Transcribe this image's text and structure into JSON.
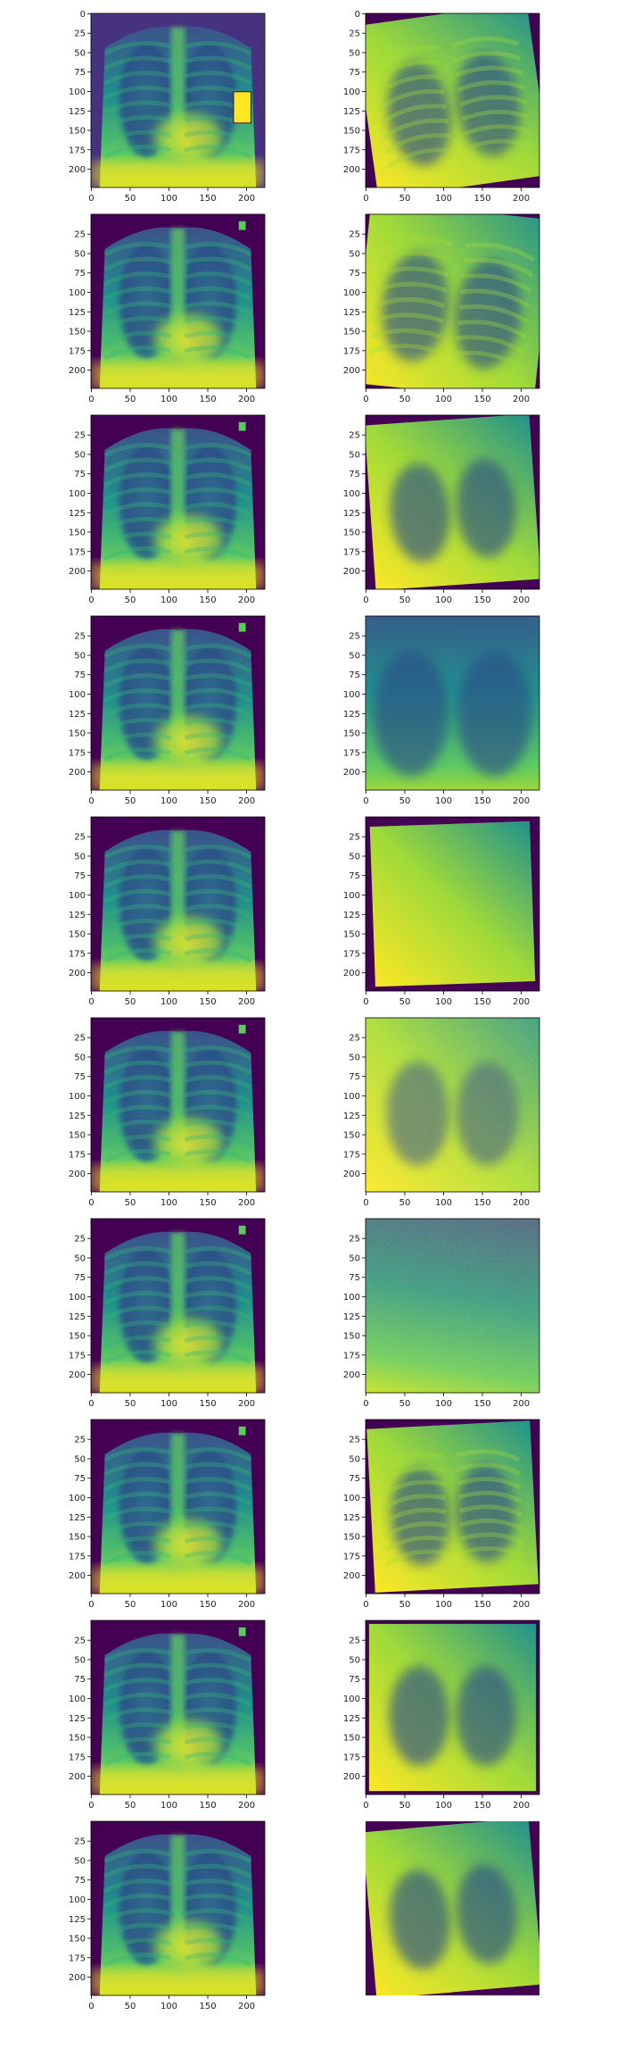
{
  "figure": {
    "rows": 10,
    "cols": 2,
    "background": "#ffffff",
    "colormap": "viridis",
    "colormap_stops": [
      "#440154",
      "#3b528b",
      "#21918c",
      "#5ec962",
      "#fde725"
    ]
  },
  "axes_ticks": {
    "x": [
      "0",
      "50",
      "100",
      "150",
      "200"
    ],
    "y_first_row": [
      "0",
      "25",
      "50",
      "75",
      "100",
      "125",
      "150",
      "175",
      "200"
    ],
    "y_other_rows": [
      "25",
      "50",
      "75",
      "100",
      "125",
      "150",
      "175",
      "200"
    ]
  },
  "panels": [
    {
      "row": 0,
      "col": 0,
      "kind": "chest-xray-frontal",
      "has_axes": true
    },
    {
      "row": 0,
      "col": 1,
      "kind": "chest-xray-rotated",
      "has_axes": true
    },
    {
      "row": 1,
      "col": 0,
      "kind": "chest-xray-frontal",
      "has_axes": true
    },
    {
      "row": 1,
      "col": 1,
      "kind": "chest-xray-rotated-zoom",
      "has_axes": true
    },
    {
      "row": 2,
      "col": 0,
      "kind": "chest-xray-frontal",
      "has_axes": true
    },
    {
      "row": 2,
      "col": 1,
      "kind": "chest-xray-rotated",
      "has_axes": true
    },
    {
      "row": 3,
      "col": 0,
      "kind": "chest-xray-frontal",
      "has_axes": true
    },
    {
      "row": 3,
      "col": 1,
      "kind": "chest-xray-zoom-blur",
      "has_axes": true
    },
    {
      "row": 4,
      "col": 0,
      "kind": "chest-xray-frontal",
      "has_axes": true
    },
    {
      "row": 4,
      "col": 1,
      "kind": "chest-xray-zoom-bright",
      "has_axes": true
    },
    {
      "row": 5,
      "col": 0,
      "kind": "chest-xray-frontal",
      "has_axes": true
    },
    {
      "row": 5,
      "col": 1,
      "kind": "chest-xray-noisy",
      "has_axes": true
    },
    {
      "row": 6,
      "col": 0,
      "kind": "chest-xray-frontal",
      "has_axes": true
    },
    {
      "row": 6,
      "col": 1,
      "kind": "chest-xray-zoom-edge",
      "has_axes": true
    },
    {
      "row": 7,
      "col": 0,
      "kind": "chest-xray-frontal",
      "has_axes": true
    },
    {
      "row": 7,
      "col": 1,
      "kind": "chest-xray-rotated",
      "has_axes": true
    },
    {
      "row": 8,
      "col": 0,
      "kind": "chest-xray-frontal",
      "has_axes": true
    },
    {
      "row": 8,
      "col": 1,
      "kind": "chest-xray-frontal-crop",
      "has_axes": true
    },
    {
      "row": 9,
      "col": 0,
      "kind": "chest-xray-frontal",
      "has_axes": true
    },
    {
      "row": 9,
      "col": 1,
      "kind": "chest-xray-zoom-rotated",
      "has_axes": false
    }
  ]
}
